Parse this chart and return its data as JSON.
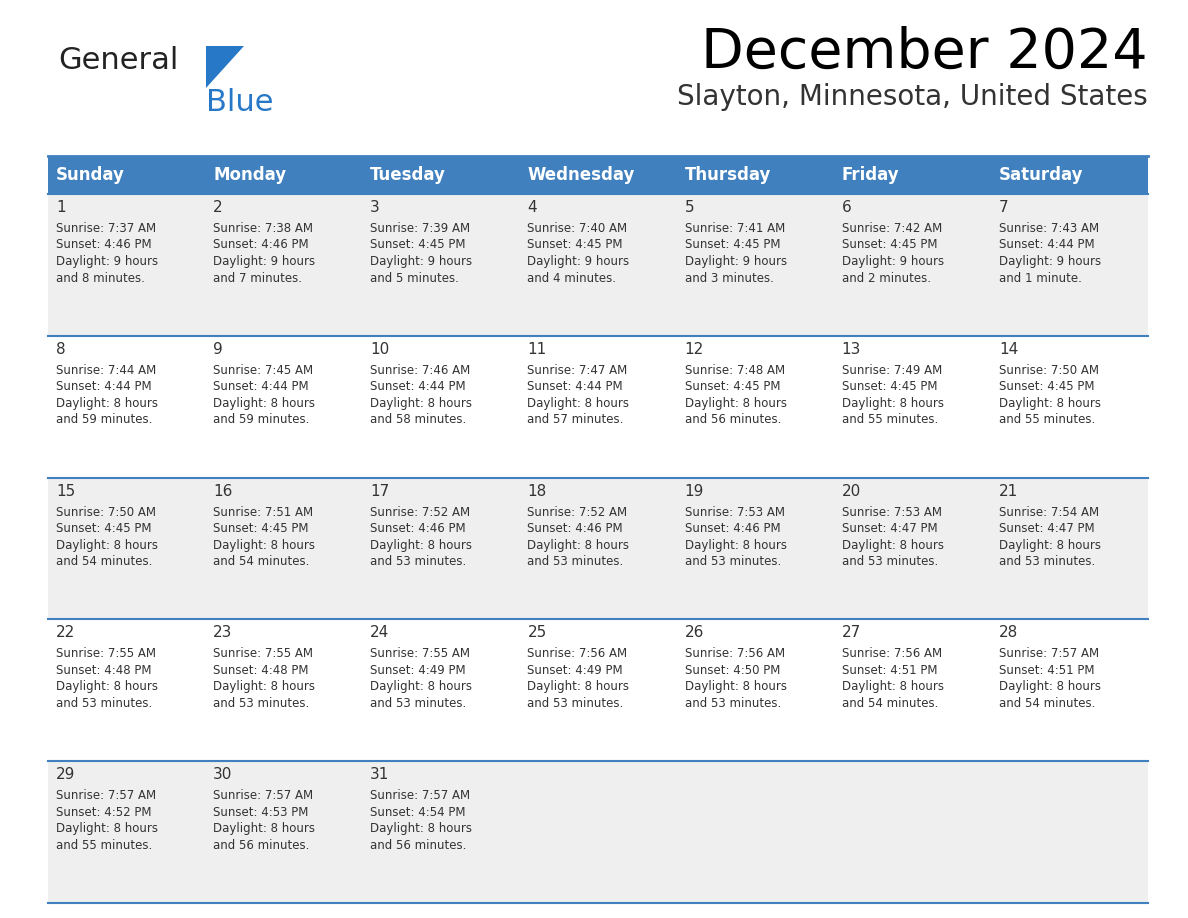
{
  "title": "December 2024",
  "subtitle": "Slayton, Minnesota, United States",
  "header_color": "#4080BF",
  "header_text_color": "#FFFFFF",
  "day_names": [
    "Sunday",
    "Monday",
    "Tuesday",
    "Wednesday",
    "Thursday",
    "Friday",
    "Saturday"
  ],
  "grid_line_color": "#4080BF",
  "cell_bg_row0": "#EFEFEF",
  "cell_bg_row1": "#FFFFFF",
  "cell_bg_row2": "#EFEFEF",
  "cell_bg_row3": "#FFFFFF",
  "cell_bg_row4": "#EFEFEF",
  "text_color": "#333333",
  "logo_text_color": "#222222",
  "logo_blue_color": "#2878C8",
  "days": [
    {
      "day": 1,
      "col": 0,
      "row": 0,
      "sunrise": "7:37 AM",
      "sunset": "4:46 PM",
      "daylight_hours": 9,
      "daylight_minutes": 8
    },
    {
      "day": 2,
      "col": 1,
      "row": 0,
      "sunrise": "7:38 AM",
      "sunset": "4:46 PM",
      "daylight_hours": 9,
      "daylight_minutes": 7
    },
    {
      "day": 3,
      "col": 2,
      "row": 0,
      "sunrise": "7:39 AM",
      "sunset": "4:45 PM",
      "daylight_hours": 9,
      "daylight_minutes": 5
    },
    {
      "day": 4,
      "col": 3,
      "row": 0,
      "sunrise": "7:40 AM",
      "sunset": "4:45 PM",
      "daylight_hours": 9,
      "daylight_minutes": 4
    },
    {
      "day": 5,
      "col": 4,
      "row": 0,
      "sunrise": "7:41 AM",
      "sunset": "4:45 PM",
      "daylight_hours": 9,
      "daylight_minutes": 3
    },
    {
      "day": 6,
      "col": 5,
      "row": 0,
      "sunrise": "7:42 AM",
      "sunset": "4:45 PM",
      "daylight_hours": 9,
      "daylight_minutes": 2
    },
    {
      "day": 7,
      "col": 6,
      "row": 0,
      "sunrise": "7:43 AM",
      "sunset": "4:44 PM",
      "daylight_hours": 9,
      "daylight_minutes": 1
    },
    {
      "day": 8,
      "col": 0,
      "row": 1,
      "sunrise": "7:44 AM",
      "sunset": "4:44 PM",
      "daylight_hours": 8,
      "daylight_minutes": 59
    },
    {
      "day": 9,
      "col": 1,
      "row": 1,
      "sunrise": "7:45 AM",
      "sunset": "4:44 PM",
      "daylight_hours": 8,
      "daylight_minutes": 59
    },
    {
      "day": 10,
      "col": 2,
      "row": 1,
      "sunrise": "7:46 AM",
      "sunset": "4:44 PM",
      "daylight_hours": 8,
      "daylight_minutes": 58
    },
    {
      "day": 11,
      "col": 3,
      "row": 1,
      "sunrise": "7:47 AM",
      "sunset": "4:44 PM",
      "daylight_hours": 8,
      "daylight_minutes": 57
    },
    {
      "day": 12,
      "col": 4,
      "row": 1,
      "sunrise": "7:48 AM",
      "sunset": "4:45 PM",
      "daylight_hours": 8,
      "daylight_minutes": 56
    },
    {
      "day": 13,
      "col": 5,
      "row": 1,
      "sunrise": "7:49 AM",
      "sunset": "4:45 PM",
      "daylight_hours": 8,
      "daylight_minutes": 55
    },
    {
      "day": 14,
      "col": 6,
      "row": 1,
      "sunrise": "7:50 AM",
      "sunset": "4:45 PM",
      "daylight_hours": 8,
      "daylight_minutes": 55
    },
    {
      "day": 15,
      "col": 0,
      "row": 2,
      "sunrise": "7:50 AM",
      "sunset": "4:45 PM",
      "daylight_hours": 8,
      "daylight_minutes": 54
    },
    {
      "day": 16,
      "col": 1,
      "row": 2,
      "sunrise": "7:51 AM",
      "sunset": "4:45 PM",
      "daylight_hours": 8,
      "daylight_minutes": 54
    },
    {
      "day": 17,
      "col": 2,
      "row": 2,
      "sunrise": "7:52 AM",
      "sunset": "4:46 PM",
      "daylight_hours": 8,
      "daylight_minutes": 53
    },
    {
      "day": 18,
      "col": 3,
      "row": 2,
      "sunrise": "7:52 AM",
      "sunset": "4:46 PM",
      "daylight_hours": 8,
      "daylight_minutes": 53
    },
    {
      "day": 19,
      "col": 4,
      "row": 2,
      "sunrise": "7:53 AM",
      "sunset": "4:46 PM",
      "daylight_hours": 8,
      "daylight_minutes": 53
    },
    {
      "day": 20,
      "col": 5,
      "row": 2,
      "sunrise": "7:53 AM",
      "sunset": "4:47 PM",
      "daylight_hours": 8,
      "daylight_minutes": 53
    },
    {
      "day": 21,
      "col": 6,
      "row": 2,
      "sunrise": "7:54 AM",
      "sunset": "4:47 PM",
      "daylight_hours": 8,
      "daylight_minutes": 53
    },
    {
      "day": 22,
      "col": 0,
      "row": 3,
      "sunrise": "7:55 AM",
      "sunset": "4:48 PM",
      "daylight_hours": 8,
      "daylight_minutes": 53
    },
    {
      "day": 23,
      "col": 1,
      "row": 3,
      "sunrise": "7:55 AM",
      "sunset": "4:48 PM",
      "daylight_hours": 8,
      "daylight_minutes": 53
    },
    {
      "day": 24,
      "col": 2,
      "row": 3,
      "sunrise": "7:55 AM",
      "sunset": "4:49 PM",
      "daylight_hours": 8,
      "daylight_minutes": 53
    },
    {
      "day": 25,
      "col": 3,
      "row": 3,
      "sunrise": "7:56 AM",
      "sunset": "4:49 PM",
      "daylight_hours": 8,
      "daylight_minutes": 53
    },
    {
      "day": 26,
      "col": 4,
      "row": 3,
      "sunrise": "7:56 AM",
      "sunset": "4:50 PM",
      "daylight_hours": 8,
      "daylight_minutes": 53
    },
    {
      "day": 27,
      "col": 5,
      "row": 3,
      "sunrise": "7:56 AM",
      "sunset": "4:51 PM",
      "daylight_hours": 8,
      "daylight_minutes": 54
    },
    {
      "day": 28,
      "col": 6,
      "row": 3,
      "sunrise": "7:57 AM",
      "sunset": "4:51 PM",
      "daylight_hours": 8,
      "daylight_minutes": 54
    },
    {
      "day": 29,
      "col": 0,
      "row": 4,
      "sunrise": "7:57 AM",
      "sunset": "4:52 PM",
      "daylight_hours": 8,
      "daylight_minutes": 55
    },
    {
      "day": 30,
      "col": 1,
      "row": 4,
      "sunrise": "7:57 AM",
      "sunset": "4:53 PM",
      "daylight_hours": 8,
      "daylight_minutes": 56
    },
    {
      "day": 31,
      "col": 2,
      "row": 4,
      "sunrise": "7:57 AM",
      "sunset": "4:54 PM",
      "daylight_hours": 8,
      "daylight_minutes": 56
    }
  ]
}
